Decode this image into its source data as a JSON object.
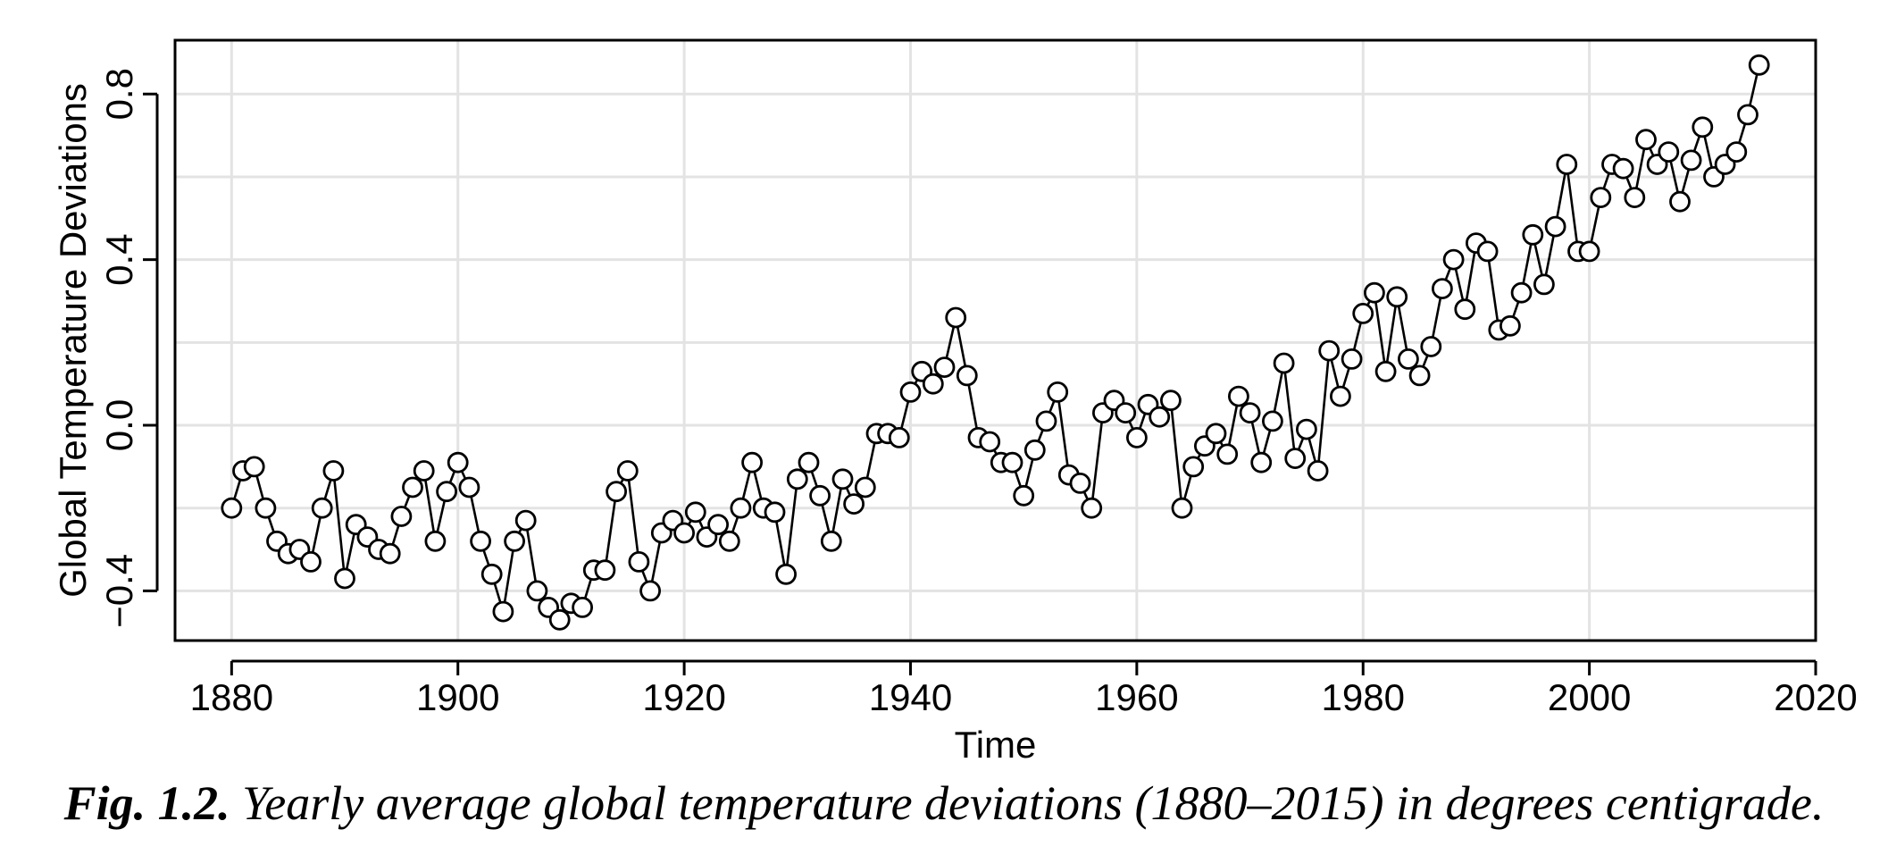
{
  "chart_data": {
    "type": "line",
    "markers": "open-circle",
    "xlabel": "Time",
    "ylabel": "Global Temperature Deviations",
    "xlim": [
      1875,
      2020
    ],
    "ylim": [
      -0.52,
      0.93
    ],
    "xticks": [
      1880,
      1900,
      1920,
      1940,
      1960,
      1980,
      2000,
      2020
    ],
    "yticks": [
      -0.4,
      0.0,
      0.4,
      0.8
    ],
    "ytick_labels": [
      "−0.4",
      "0.0",
      "0.4",
      "0.8"
    ],
    "grid": true,
    "x_start": 1880,
    "series": [
      {
        "values": [
          -0.2,
          -0.11,
          -0.1,
          -0.2,
          -0.28,
          -0.31,
          -0.3,
          -0.33,
          -0.2,
          -0.11,
          -0.37,
          -0.24,
          -0.27,
          -0.3,
          -0.31,
          -0.22,
          -0.15,
          -0.11,
          -0.28,
          -0.16,
          -0.09,
          -0.15,
          -0.28,
          -0.36,
          -0.45,
          -0.28,
          -0.23,
          -0.4,
          -0.44,
          -0.47,
          -0.43,
          -0.44,
          -0.35,
          -0.35,
          -0.16,
          -0.11,
          -0.33,
          -0.4,
          -0.26,
          -0.23,
          -0.26,
          -0.21,
          -0.27,
          -0.24,
          -0.28,
          -0.2,
          -0.09,
          -0.2,
          -0.21,
          -0.36,
          -0.13,
          -0.09,
          -0.17,
          -0.28,
          -0.13,
          -0.19,
          -0.15,
          -0.02,
          -0.02,
          -0.03,
          0.08,
          0.13,
          0.1,
          0.14,
          0.26,
          0.12,
          -0.03,
          -0.04,
          -0.09,
          -0.09,
          -0.17,
          -0.06,
          0.01,
          0.08,
          -0.12,
          -0.14,
          -0.2,
          0.03,
          0.06,
          0.03,
          -0.03,
          0.05,
          0.02,
          0.06,
          -0.2,
          -0.1,
          -0.05,
          -0.02,
          -0.07,
          0.07,
          0.03,
          -0.09,
          0.01,
          0.15,
          -0.08,
          -0.01,
          -0.11,
          0.18,
          0.07,
          0.16,
          0.27,
          0.32,
          0.13,
          0.31,
          0.16,
          0.12,
          0.19,
          0.33,
          0.4,
          0.28,
          0.44,
          0.42,
          0.23,
          0.24,
          0.32,
          0.46,
          0.34,
          0.48,
          0.63,
          0.42,
          0.42,
          0.55,
          0.63,
          0.62,
          0.55,
          0.69,
          0.63,
          0.66,
          0.54,
          0.64,
          0.72,
          0.6,
          0.63,
          0.66,
          0.75,
          0.87
        ]
      }
    ]
  },
  "caption": {
    "label": "Fig. 1.2.",
    "text": "Yearly average global temperature deviations (1880–2015) in degrees centigrade."
  }
}
